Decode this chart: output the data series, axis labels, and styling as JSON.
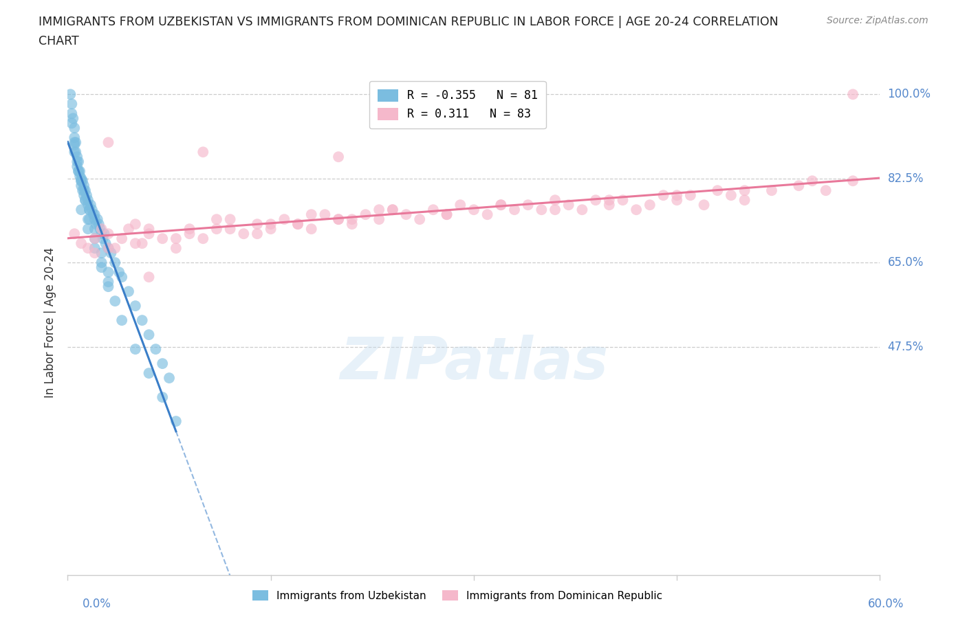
{
  "title_line1": "IMMIGRANTS FROM UZBEKISTAN VS IMMIGRANTS FROM DOMINICAN REPUBLIC IN LABOR FORCE | AGE 20-24 CORRELATION",
  "title_line2": "CHART",
  "source_text": "Source: ZipAtlas.com",
  "xlabel_bottom_left": "0.0%",
  "xlabel_bottom_right": "60.0%",
  "ylabel": "In Labor Force | Age 20-24",
  "ytick_labels": [
    "100.0%",
    "82.5%",
    "65.0%",
    "47.5%"
  ],
  "ytick_values": [
    100.0,
    82.5,
    65.0,
    47.5
  ],
  "xlim": [
    0.0,
    60.0
  ],
  "ylim": [
    0.0,
    105.0
  ],
  "watermark_text": "ZIPatlas",
  "legend_r_uzbekistan": "-0.355",
  "legend_n_uzbekistan": "81",
  "legend_r_dominican": " 0.311",
  "legend_n_dominican": "83",
  "color_uzbekistan": "#7bbde0",
  "color_dominican": "#f5b8cb",
  "trendline_uzbekistan_color": "#3a7ec8",
  "trendline_dominican_color": "#e8789a",
  "uz_x": [
    0.2,
    0.3,
    0.3,
    0.4,
    0.5,
    0.5,
    0.5,
    0.6,
    0.6,
    0.7,
    0.7,
    0.8,
    0.8,
    0.9,
    0.9,
    1.0,
    1.0,
    1.0,
    1.1,
    1.1,
    1.2,
    1.2,
    1.3,
    1.3,
    1.4,
    1.5,
    1.5,
    1.6,
    1.7,
    1.8,
    1.9,
    2.0,
    2.0,
    2.1,
    2.2,
    2.3,
    2.4,
    2.5,
    2.6,
    2.7,
    2.8,
    3.0,
    3.2,
    3.5,
    3.8,
    4.0,
    4.5,
    5.0,
    5.5,
    6.0,
    6.5,
    7.0,
    7.5,
    1.0,
    1.5,
    2.0,
    2.5,
    3.0,
    0.5,
    0.8,
    1.2,
    1.6,
    2.0,
    2.5,
    3.0,
    0.3,
    0.5,
    0.7,
    1.0,
    1.3,
    1.6,
    2.0,
    2.5,
    3.0,
    3.5,
    4.0,
    5.0,
    6.0,
    7.0,
    8.0,
    1.5
  ],
  "uz_y": [
    100.0,
    98.0,
    96.0,
    95.0,
    93.0,
    91.0,
    89.5,
    90.0,
    88.0,
    87.0,
    85.0,
    86.0,
    84.0,
    83.0,
    84.0,
    82.5,
    81.0,
    82.0,
    80.0,
    82.0,
    81.0,
    79.0,
    80.0,
    78.0,
    79.0,
    77.0,
    78.0,
    76.0,
    77.0,
    76.0,
    75.0,
    74.0,
    75.0,
    73.0,
    74.0,
    73.0,
    72.0,
    71.0,
    70.0,
    71.0,
    69.0,
    68.0,
    67.0,
    65.0,
    63.0,
    62.0,
    59.0,
    56.0,
    53.0,
    50.0,
    47.0,
    44.0,
    41.0,
    76.0,
    72.0,
    68.0,
    64.0,
    60.0,
    88.0,
    84.0,
    80.0,
    76.0,
    72.0,
    67.0,
    63.0,
    94.0,
    90.0,
    86.0,
    82.0,
    78.0,
    74.0,
    70.0,
    65.0,
    61.0,
    57.0,
    53.0,
    47.0,
    42.0,
    37.0,
    32.0,
    74.0
  ],
  "dr_x": [
    0.5,
    1.0,
    1.5,
    2.0,
    2.5,
    3.0,
    3.5,
    4.0,
    4.5,
    5.0,
    5.5,
    6.0,
    7.0,
    8.0,
    9.0,
    10.0,
    11.0,
    12.0,
    13.0,
    14.0,
    15.0,
    16.0,
    17.0,
    18.0,
    19.0,
    20.0,
    21.0,
    22.0,
    23.0,
    24.0,
    25.0,
    26.0,
    27.0,
    28.0,
    29.0,
    30.0,
    31.0,
    32.0,
    33.0,
    34.0,
    35.0,
    36.0,
    37.0,
    38.0,
    39.0,
    40.0,
    41.0,
    42.0,
    43.0,
    44.0,
    45.0,
    46.0,
    47.0,
    48.0,
    49.0,
    50.0,
    52.0,
    54.0,
    56.0,
    58.0,
    3.0,
    6.0,
    9.0,
    12.0,
    15.0,
    18.0,
    21.0,
    24.0,
    28.0,
    32.0,
    36.0,
    40.0,
    45.0,
    50.0,
    55.0,
    2.0,
    5.0,
    8.0,
    11.0,
    14.0,
    17.0,
    20.0,
    23.0
  ],
  "dr_y": [
    71.0,
    69.0,
    68.0,
    70.0,
    72.0,
    71.0,
    68.0,
    70.0,
    72.0,
    73.0,
    69.0,
    71.0,
    70.0,
    68.0,
    72.0,
    70.0,
    74.0,
    72.0,
    71.0,
    73.0,
    72.0,
    74.0,
    73.0,
    72.0,
    75.0,
    74.0,
    73.0,
    75.0,
    74.0,
    76.0,
    75.0,
    74.0,
    76.0,
    75.0,
    77.0,
    76.0,
    75.0,
    77.0,
    76.0,
    77.0,
    76.0,
    78.0,
    77.0,
    76.0,
    78.0,
    77.0,
    78.0,
    76.0,
    77.0,
    79.0,
    78.0,
    79.0,
    77.0,
    80.0,
    79.0,
    78.0,
    80.0,
    81.0,
    80.0,
    82.0,
    68.0,
    72.0,
    71.0,
    74.0,
    73.0,
    75.0,
    74.0,
    76.0,
    75.0,
    77.0,
    76.0,
    78.0,
    79.0,
    80.0,
    82.0,
    67.0,
    69.0,
    70.0,
    72.0,
    71.0,
    73.0,
    74.0,
    76.0
  ],
  "dr_extra_x": [
    3.0,
    10.0,
    20.0,
    58.0,
    6.0
  ],
  "dr_extra_y": [
    90.0,
    88.0,
    87.0,
    100.0,
    62.0
  ]
}
